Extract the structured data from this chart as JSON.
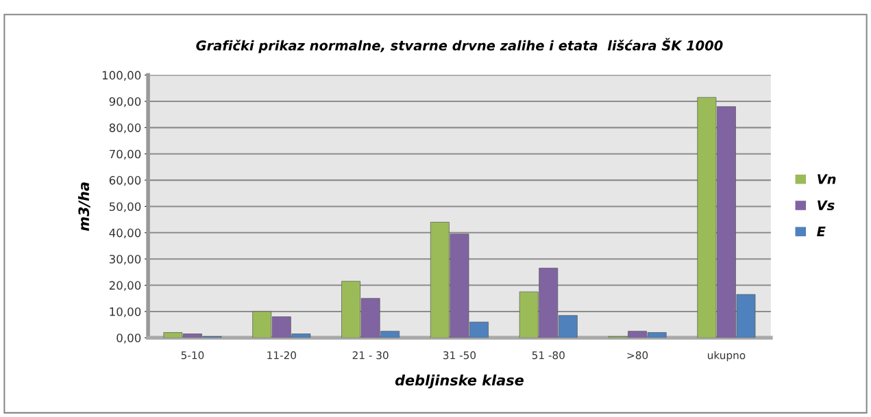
{
  "chart_data": {
    "type": "bar",
    "title": "Grafički prikaz normalne, stvarne drvne zalihe i etata  lišćara ŠK 1000",
    "xlabel": "debljinske klase",
    "ylabel": "m3/ha",
    "categories": [
      "5-10",
      "11-20",
      "21 - 30",
      "31 -50",
      "51 -80",
      ">80",
      "ukupno"
    ],
    "series": [
      {
        "name": "Vn",
        "color": "#9bbb59",
        "values": [
          2,
          10,
          21.5,
          44,
          17.5,
          0.5,
          91.5
        ]
      },
      {
        "name": "Vs",
        "color": "#8064a2",
        "values": [
          1.5,
          8,
          15,
          39.5,
          26.5,
          2.5,
          88
        ]
      },
      {
        "name": "E",
        "color": "#4f81bd",
        "values": [
          0.5,
          1.5,
          2.5,
          6,
          8.5,
          2,
          16.5
        ]
      }
    ],
    "ylim": [
      0,
      100
    ],
    "yticks": [
      {
        "value": 0,
        "label": "0,00"
      },
      {
        "value": 10,
        "label": "10,00"
      },
      {
        "value": 20,
        "label": "20,00"
      },
      {
        "value": 30,
        "label": "30,00"
      },
      {
        "value": 40,
        "label": "40,00"
      },
      {
        "value": 50,
        "label": "50,00"
      },
      {
        "value": 60,
        "label": "60,00"
      },
      {
        "value": 70,
        "label": "70,00"
      },
      {
        "value": 80,
        "label": "80,00"
      },
      {
        "value": 90,
        "label": "90,00"
      },
      {
        "value": 100,
        "label": "100,00"
      }
    ],
    "grid": "y",
    "legend": "right"
  }
}
